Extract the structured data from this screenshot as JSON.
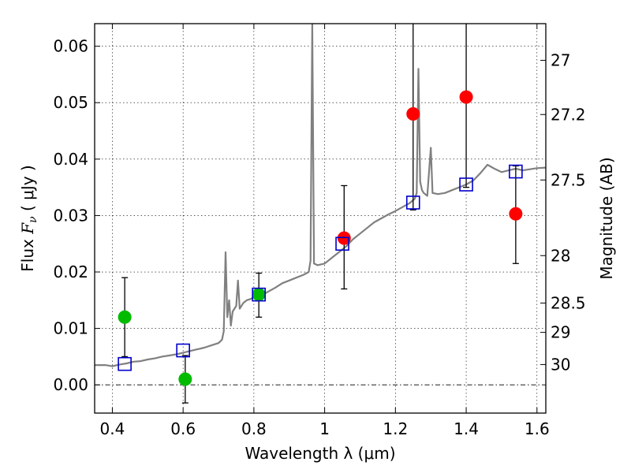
{
  "chart_data": {
    "type": "scatter",
    "xlabel": "Wavelength  λ (μm)",
    "ylabel": "Flux  F_ν  ( μJy )",
    "ylabel_parts": {
      "pre": "Flux  ",
      "var": "F",
      "sub": "ν",
      "post": "  ( μJy )"
    },
    "y2label": "Magnitude (AB)",
    "xlim": [
      0.35,
      1.625
    ],
    "ylim": [
      -0.005,
      0.064
    ],
    "grid": true,
    "x_ticks": [
      {
        "value": 0.4,
        "label": "0.4"
      },
      {
        "value": 0.6,
        "label": "0.6"
      },
      {
        "value": 0.8,
        "label": "0.8"
      },
      {
        "value": 1.0,
        "label": "1"
      },
      {
        "value": 1.2,
        "label": "1.2"
      },
      {
        "value": 1.4,
        "label": "1.4"
      },
      {
        "value": 1.6,
        "label": "1.6"
      }
    ],
    "y_ticks": [
      {
        "value": 0.0,
        "label": "0.00"
      },
      {
        "value": 0.01,
        "label": "0.01"
      },
      {
        "value": 0.02,
        "label": "0.02"
      },
      {
        "value": 0.03,
        "label": "0.03"
      },
      {
        "value": 0.04,
        "label": "0.04"
      },
      {
        "value": 0.05,
        "label": "0.05"
      },
      {
        "value": 0.06,
        "label": "0.06"
      }
    ],
    "y2_ticks": [
      {
        "flux": 0.0575,
        "label": "27"
      },
      {
        "flux": 0.0479,
        "label": "27.2"
      },
      {
        "flux": 0.0363,
        "label": "27.5"
      },
      {
        "flux": 0.0229,
        "label": "28"
      },
      {
        "flux": 0.0145,
        "label": "28.5"
      },
      {
        "flux": 0.0093,
        "label": "29"
      },
      {
        "flux": 0.0036,
        "label": "30"
      }
    ],
    "series": [
      {
        "kind": "model_spectrum",
        "color": "#808080",
        "points": [
          [
            0.35,
            0.0035
          ],
          [
            0.38,
            0.0035
          ],
          [
            0.4,
            0.0033
          ],
          [
            0.42,
            0.0036
          ],
          [
            0.44,
            0.0038
          ],
          [
            0.46,
            0.0041
          ],
          [
            0.48,
            0.0042
          ],
          [
            0.5,
            0.0045
          ],
          [
            0.52,
            0.0047
          ],
          [
            0.54,
            0.005
          ],
          [
            0.56,
            0.0052
          ],
          [
            0.58,
            0.0054
          ],
          [
            0.6,
            0.0057
          ],
          [
            0.62,
            0.006
          ],
          [
            0.64,
            0.0063
          ],
          [
            0.66,
            0.0066
          ],
          [
            0.68,
            0.007
          ],
          [
            0.7,
            0.0074
          ],
          [
            0.71,
            0.008
          ],
          [
            0.715,
            0.0095
          ],
          [
            0.72,
            0.0235
          ],
          [
            0.725,
            0.012
          ],
          [
            0.73,
            0.015
          ],
          [
            0.735,
            0.0105
          ],
          [
            0.74,
            0.013
          ],
          [
            0.75,
            0.014
          ],
          [
            0.755,
            0.0185
          ],
          [
            0.76,
            0.0135
          ],
          [
            0.77,
            0.0145
          ],
          [
            0.78,
            0.015
          ],
          [
            0.79,
            0.0152
          ],
          [
            0.8,
            0.0155
          ],
          [
            0.82,
            0.0158
          ],
          [
            0.84,
            0.0165
          ],
          [
            0.86,
            0.0172
          ],
          [
            0.88,
            0.018
          ],
          [
            0.9,
            0.0185
          ],
          [
            0.92,
            0.019
          ],
          [
            0.94,
            0.0195
          ],
          [
            0.955,
            0.02
          ],
          [
            0.96,
            0.022
          ],
          [
            0.965,
            0.064
          ],
          [
            0.97,
            0.0215
          ],
          [
            0.98,
            0.0212
          ],
          [
            1.0,
            0.0215
          ],
          [
            1.02,
            0.0225
          ],
          [
            1.04,
            0.0235
          ],
          [
            1.06,
            0.0245
          ],
          [
            1.08,
            0.0258
          ],
          [
            1.1,
            0.0268
          ],
          [
            1.12,
            0.0278
          ],
          [
            1.14,
            0.0288
          ],
          [
            1.16,
            0.0295
          ],
          [
            1.18,
            0.0302
          ],
          [
            1.2,
            0.0308
          ],
          [
            1.22,
            0.0315
          ],
          [
            1.24,
            0.0322
          ],
          [
            1.255,
            0.033
          ],
          [
            1.26,
            0.034
          ],
          [
            1.265,
            0.056
          ],
          [
            1.27,
            0.036
          ],
          [
            1.275,
            0.0345
          ],
          [
            1.28,
            0.034
          ],
          [
            1.29,
            0.0335
          ],
          [
            1.3,
            0.042
          ],
          [
            1.305,
            0.034
          ],
          [
            1.32,
            0.0338
          ],
          [
            1.34,
            0.034
          ],
          [
            1.36,
            0.0345
          ],
          [
            1.38,
            0.035
          ],
          [
            1.4,
            0.0355
          ],
          [
            1.42,
            0.0362
          ],
          [
            1.44,
            0.0375
          ],
          [
            1.46,
            0.039
          ],
          [
            1.48,
            0.0383
          ],
          [
            1.5,
            0.0377
          ],
          [
            1.52,
            0.038
          ],
          [
            1.54,
            0.0383
          ],
          [
            1.56,
            0.038
          ],
          [
            1.58,
            0.0382
          ],
          [
            1.6,
            0.0384
          ],
          [
            1.625,
            0.0385
          ]
        ]
      },
      {
        "kind": "model_photometry",
        "marker": "open-square",
        "color": "#0000cc",
        "points": [
          [
            0.435,
            0.0037
          ],
          [
            0.6,
            0.0061
          ],
          [
            0.814,
            0.016
          ],
          [
            1.05,
            0.025
          ],
          [
            1.25,
            0.0323
          ],
          [
            1.4,
            0.0355
          ],
          [
            1.54,
            0.0378
          ]
        ]
      },
      {
        "kind": "observed_photometry",
        "marker": "filled-circle",
        "color": "#00bb00",
        "points": [
          {
            "x": 0.435,
            "y": 0.012,
            "err_low": 0.005,
            "err_high": 0.019
          },
          {
            "x": 0.606,
            "y": 0.001,
            "err_low": -0.0032,
            "err_high": 0.0052
          },
          {
            "x": 0.814,
            "y": 0.016,
            "err_low": 0.012,
            "err_high": 0.0198
          }
        ]
      },
      {
        "kind": "observed_photometry",
        "marker": "filled-circle",
        "color": "#ff0000",
        "points": [
          {
            "x": 1.055,
            "y": 0.026,
            "err_low": 0.017,
            "err_high": 0.0353
          },
          {
            "x": 1.25,
            "y": 0.048,
            "err_low": 0.031,
            "err_high": 0.065
          },
          {
            "x": 1.4,
            "y": 0.051,
            "err_low": 0.035,
            "err_high": 0.065
          },
          {
            "x": 1.54,
            "y": 0.0303,
            "err_low": 0.0215,
            "err_high": 0.0388
          }
        ]
      }
    ],
    "reference_line": {
      "y": 0.0,
      "style": "dash-dot",
      "color": "#000000"
    }
  }
}
